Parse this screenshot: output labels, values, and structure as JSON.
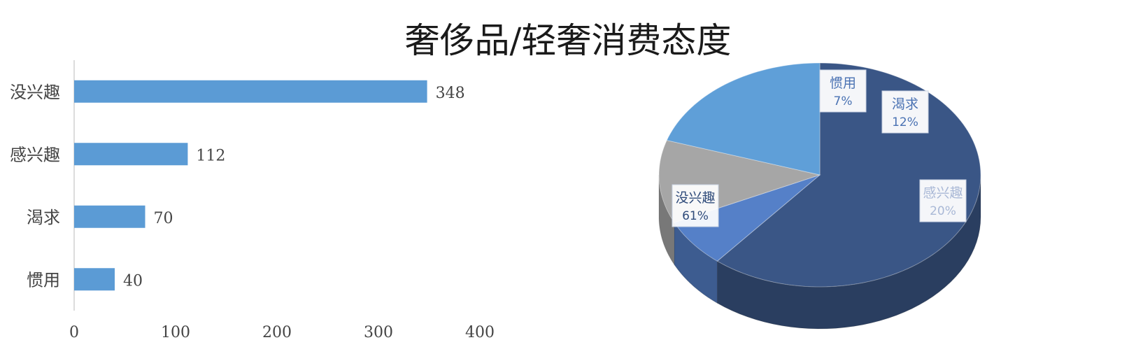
{
  "title": "奢侈品/轻奢消费态度",
  "colors": {
    "bar": "#5b9bd5",
    "axis": "#d0d0d0",
    "pie_slices": [
      "#3a5686",
      "#5580c8",
      "#a6a6a6",
      "#5f9fd8"
    ]
  },
  "chart_data": [
    {
      "type": "bar",
      "orientation": "horizontal",
      "categories": [
        "没兴趣",
        "感兴趣",
        "渴求",
        "惯用"
      ],
      "values": [
        348,
        112,
        70,
        40
      ],
      "data_labels": [
        "348",
        "112",
        "70",
        "40"
      ],
      "xlim": [
        0,
        400
      ],
      "xticks": [
        "0",
        "100",
        "200",
        "300",
        "400"
      ],
      "grid": false,
      "legend": "none"
    },
    {
      "type": "pie",
      "style": "3d",
      "labels": [
        "没兴趣",
        "惯用",
        "渴求",
        "感兴趣"
      ],
      "values": [
        61,
        7,
        12,
        20
      ],
      "data_labels": [
        "61%",
        "7%",
        "12%",
        "20%"
      ],
      "legend": "none"
    }
  ]
}
